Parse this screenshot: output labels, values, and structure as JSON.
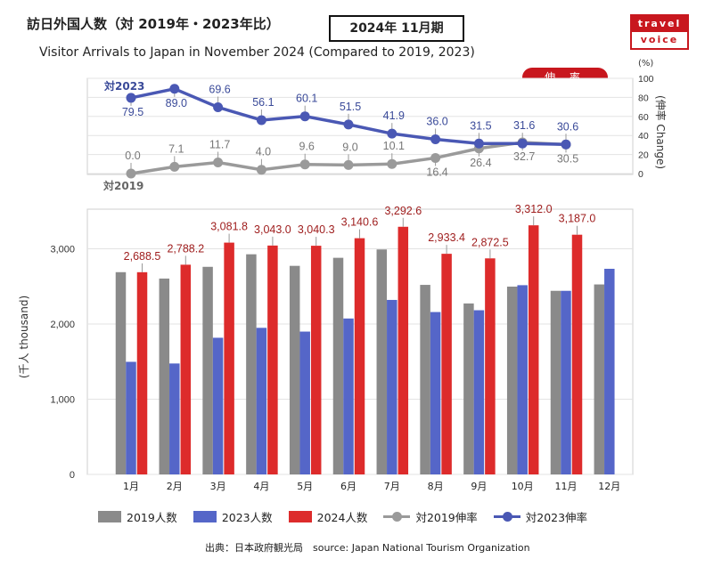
{
  "header": {
    "title_jp": "訪日外国人数（対 2019年・2023年比）",
    "period": "2024年 11月期",
    "title_en": "Visitor Arrivals to Japan in November 2024 (Compared to 2019, 2023)",
    "logo_top": "travel",
    "logo_bottom": "voice"
  },
  "badge": "伸 率",
  "pct_unit": "(%)",
  "right_axis_label": "(伸率 Change)",
  "left_axis_label": "(千人 thousand)",
  "series_labels": {
    "vs2023": "対2023",
    "vs2019": "対2019"
  },
  "legend": [
    "2019人数",
    "2023人数",
    "2024人数",
    "対2019伸率",
    "対2023伸率"
  ],
  "source": "出典：日本政府観光局　source: Japan National Tourism Organization",
  "colors": {
    "gray": "#8a8a8a",
    "blue": "#5566c8",
    "red": "#dd2b2b",
    "line2019": "#9a9a9a",
    "line2023": "#4a58b4",
    "label_red": "#9e1c1c",
    "label_blue": "#3a4a99"
  },
  "chart_data": [
    {
      "type": "bar",
      "categories": [
        "1月",
        "2月",
        "3月",
        "4月",
        "5月",
        "6月",
        "7月",
        "8月",
        "9月",
        "10月",
        "11月",
        "12月"
      ],
      "ylabel": "(千人 thousand)",
      "ylim": [
        0,
        3500
      ],
      "yticks": [
        "0",
        "1,000",
        "2,000",
        "3,000"
      ],
      "series": [
        {
          "name": "2019人数",
          "values": [
            2689,
            2604,
            2760,
            2927,
            2773,
            2880,
            2991,
            2520,
            2273,
            2497,
            2441,
            2526
          ]
        },
        {
          "name": "2023人数",
          "values": [
            1497,
            1475,
            1817,
            1949,
            1899,
            2073,
            2320,
            2159,
            2183,
            2516,
            2441,
            2734
          ]
        },
        {
          "name": "2024人数",
          "values": [
            2688.5,
            2788.2,
            3081.8,
            3043.0,
            3040.3,
            3140.6,
            3292.6,
            2933.4,
            2872.5,
            3312.0,
            3187.0,
            null
          ],
          "labels": [
            "2,688.5",
            "2,788.2",
            "3,081.8",
            "3,043.0",
            "3,040.3",
            "3,140.6",
            "3,292.6",
            "2,933.4",
            "2,872.5",
            "3,312.0",
            "3,187.0",
            ""
          ]
        }
      ]
    },
    {
      "type": "line",
      "categories": [
        "1月",
        "2月",
        "3月",
        "4月",
        "5月",
        "6月",
        "7月",
        "8月",
        "9月",
        "10月",
        "11月"
      ],
      "ylabel": "(伸率 Change)",
      "ylim": [
        0,
        100
      ],
      "yticks": [
        "0",
        "20",
        "40",
        "60",
        "80",
        "100"
      ],
      "series": [
        {
          "name": "対2023伸率",
          "values": [
            79.5,
            89.0,
            69.6,
            56.1,
            60.1,
            51.5,
            41.9,
            36.0,
            31.5,
            31.6,
            30.6
          ]
        },
        {
          "name": "対2019伸率",
          "values": [
            0.0,
            7.1,
            11.7,
            4.0,
            9.6,
            9.0,
            10.1,
            16.4,
            26.4,
            32.7,
            30.5
          ]
        }
      ]
    }
  ]
}
